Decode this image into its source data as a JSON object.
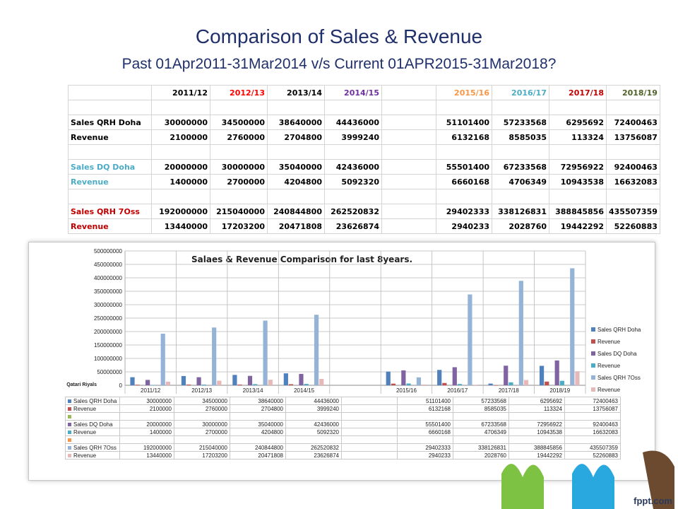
{
  "slide": {
    "title": "Comparison of Sales & Revenue",
    "subtitle": "Past 01Apr2011-31Mar2014 v/s Current 01APR2015-31Mar2018?",
    "brand": "fppt.com"
  },
  "summary_table": {
    "years": [
      "2011/12",
      "2012/13",
      "2013/14",
      "2014/15",
      "",
      "2015/16",
      "2016/17",
      "2017/18",
      "2018/19"
    ],
    "year_colors": [
      "#000000",
      "#ff0000",
      "#000000",
      "#7030a0",
      "",
      "#f79646",
      "#4bacc6",
      "#c00000",
      "#4f6228"
    ],
    "rows": [
      {
        "label": "",
        "label_color": "#000000",
        "cells": [
          "",
          "",
          "",
          "",
          "",
          "",
          "",
          "",
          ""
        ]
      },
      {
        "label": "Sales QRH Doha",
        "label_color": "#000000",
        "cells": [
          "30000000",
          "34500000",
          "38640000",
          "44436000",
          "",
          "51101400",
          "57233568",
          "6295692",
          "72400463"
        ]
      },
      {
        "label": "Revenue",
        "label_color": "#000000",
        "cells": [
          "2100000",
          "2760000",
          "2704800",
          "3999240",
          "",
          "6132168",
          "8585035",
          "113324",
          "13756087"
        ]
      },
      {
        "label": "",
        "label_color": "#000000",
        "cells": [
          "",
          "",
          "",
          "",
          "",
          "",
          "",
          "",
          ""
        ]
      },
      {
        "label": "Sales DQ Doha",
        "label_color": "#4bacc6",
        "cells": [
          "20000000",
          "30000000",
          "35040000",
          "42436000",
          "",
          "55501400",
          "67233568",
          "72956922",
          "92400463"
        ]
      },
      {
        "label": "Revenue",
        "label_color": "#4bacc6",
        "cells": [
          "1400000",
          "2700000",
          "4204800",
          "5092320",
          "",
          "6660168",
          "4706349",
          "10943538",
          "16632083"
        ]
      },
      {
        "label": "",
        "label_color": "#000000",
        "cells": [
          "",
          "",
          "",
          "",
          "",
          "",
          "",
          "",
          ""
        ]
      },
      {
        "label": "Sales QRH 7Oss",
        "label_color": "#c00000",
        "cells": [
          "192000000",
          "215040000",
          "240844800",
          "262520832",
          "",
          "29402333",
          "338126831",
          "388845856",
          "435507359"
        ]
      },
      {
        "label": "Revenue",
        "label_color": "#c00000",
        "cells": [
          "13440000",
          "17203200",
          "20471808",
          "23626874",
          "",
          "2940233",
          "2028760",
          "19442292",
          "52260883"
        ]
      }
    ]
  },
  "chart_data": {
    "type": "bar",
    "title": "Salaes & Revenue Comparison for last 8years.",
    "ylabel": "Qatari Riyals",
    "ylim": [
      0,
      500000000
    ],
    "yticks": [
      "0",
      "50000000",
      "100000000",
      "150000000",
      "200000000",
      "250000000",
      "300000000",
      "350000000",
      "400000000",
      "450000000",
      "500000000"
    ],
    "categories": [
      "2011/12",
      "2012/13",
      "2013/14",
      "2014/15",
      "",
      "2015/16",
      "2016/17",
      "2017/18",
      "2018/19"
    ],
    "series": [
      {
        "name": "Sales QRH Doha",
        "color": "#4f81bd",
        "values": [
          30000000,
          34500000,
          38640000,
          44436000,
          null,
          51101400,
          57233568,
          6295692,
          72400463
        ]
      },
      {
        "name": "Revenue",
        "color": "#c0504d",
        "values": [
          2100000,
          2760000,
          2704800,
          3999240,
          null,
          6132168,
          8585035,
          113324,
          13756087
        ]
      },
      {
        "name": "",
        "color": "#9bbb59",
        "values": [
          null,
          null,
          null,
          null,
          null,
          null,
          null,
          null,
          null
        ]
      },
      {
        "name": "Sales DQ Doha",
        "color": "#8064a2",
        "values": [
          20000000,
          30000000,
          35040000,
          42436000,
          null,
          55501400,
          67233568,
          72956922,
          92400463
        ]
      },
      {
        "name": "Revenue",
        "color": "#4bacc6",
        "values": [
          1400000,
          2700000,
          4204800,
          5092320,
          null,
          6660168,
          4706349,
          10943538,
          16632083
        ]
      },
      {
        "name": "",
        "color": "#f79646",
        "values": [
          null,
          null,
          null,
          null,
          null,
          null,
          null,
          null,
          null
        ]
      },
      {
        "name": "Sales QRH 7Oss",
        "color": "#95b3d7",
        "values": [
          192000000,
          215040000,
          240844800,
          262520832,
          null,
          29402333,
          338126831,
          388845856,
          435507359
        ]
      },
      {
        "name": "Revenue",
        "color": "#e6b9b8",
        "values": [
          13440000,
          17203200,
          20471808,
          23626874,
          null,
          2940233,
          2028760,
          19442292,
          52260883
        ]
      }
    ],
    "legend": [
      "Sales QRH Doha",
      "Revenue",
      "Sales DQ Doha",
      "Revenue",
      "Sales QRH 7Oss",
      "Revenue"
    ],
    "legend_colors": [
      "#4f81bd",
      "#c0504d",
      "#8064a2",
      "#4bacc6",
      "#95b3d7",
      "#e6b9b8"
    ],
    "legend_position": "right",
    "grid": true
  }
}
